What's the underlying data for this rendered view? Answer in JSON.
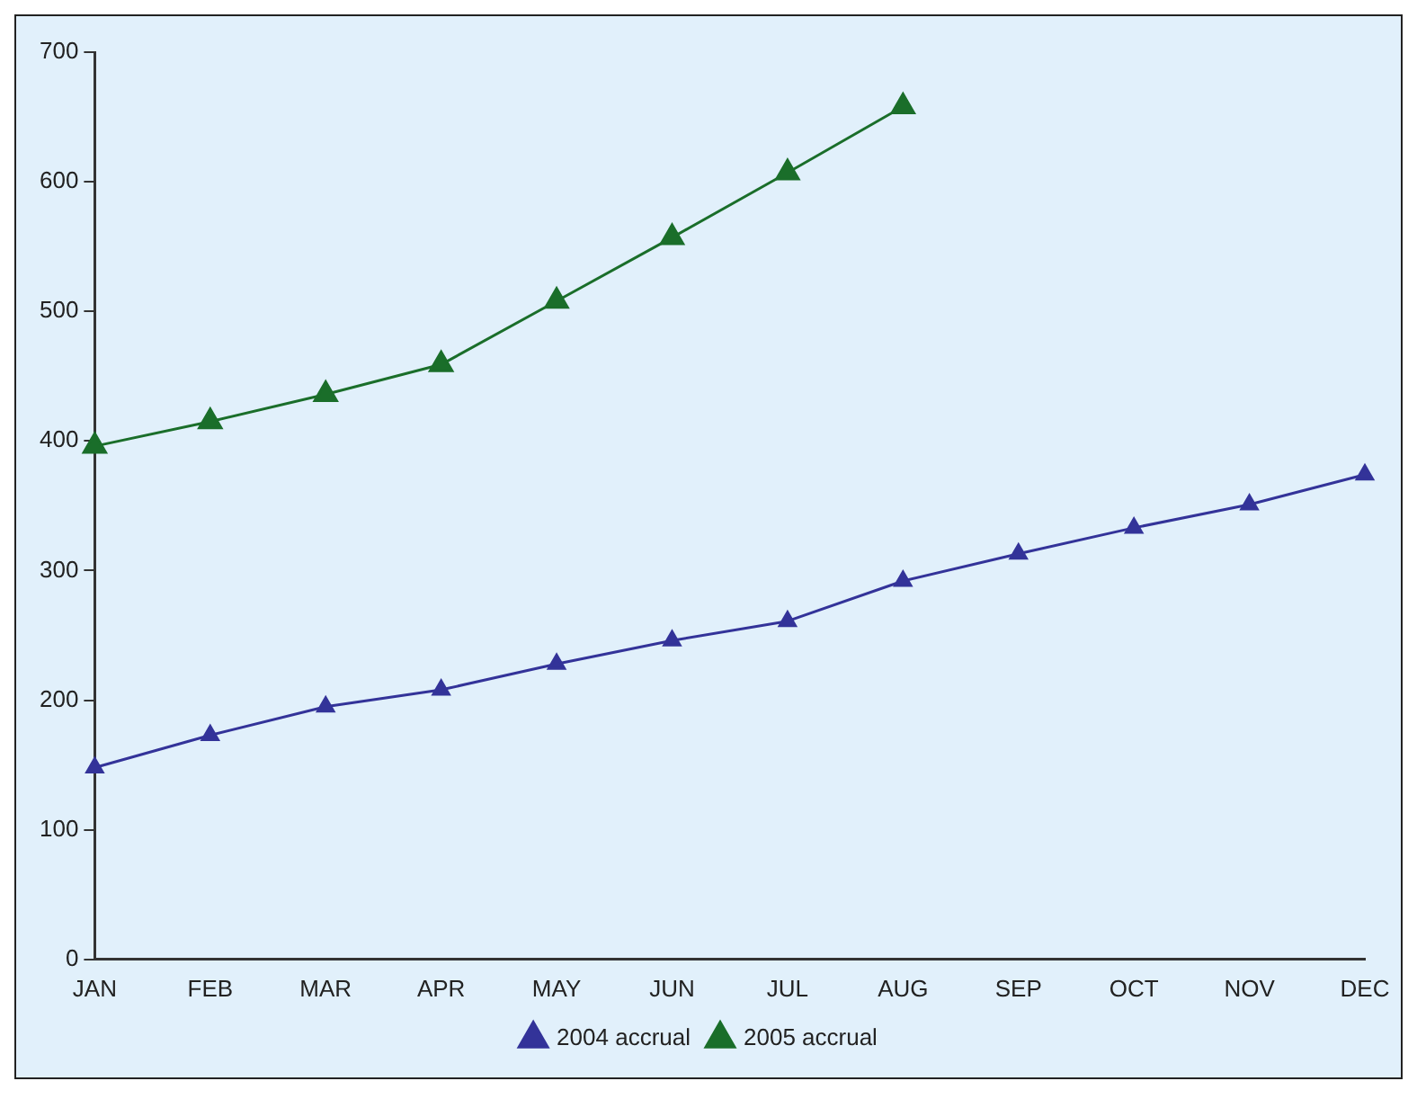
{
  "chart_data": {
    "type": "line",
    "categories": [
      "JAN",
      "FEB",
      "MAR",
      "APR",
      "MAY",
      "JUN",
      "JUL",
      "AUG",
      "SEP",
      "OCT",
      "NOV",
      "DEC"
    ],
    "series": [
      {
        "name": "2004 accrual",
        "color": "#333399",
        "values": [
          148,
          173,
          195,
          208,
          228,
          246,
          261,
          292,
          313,
          333,
          351,
          374
        ]
      },
      {
        "name": "2005 accrual",
        "color": "#1a6e2a",
        "values": [
          396,
          415,
          436,
          459,
          508,
          557,
          607,
          658,
          null,
          null,
          null,
          null
        ]
      }
    ],
    "ylim": [
      0,
      700
    ],
    "yticks": [
      0,
      100,
      200,
      300,
      400,
      500,
      600,
      700
    ],
    "grid": false,
    "legend": "bottom",
    "marker": "triangle",
    "line_style": "solid"
  }
}
